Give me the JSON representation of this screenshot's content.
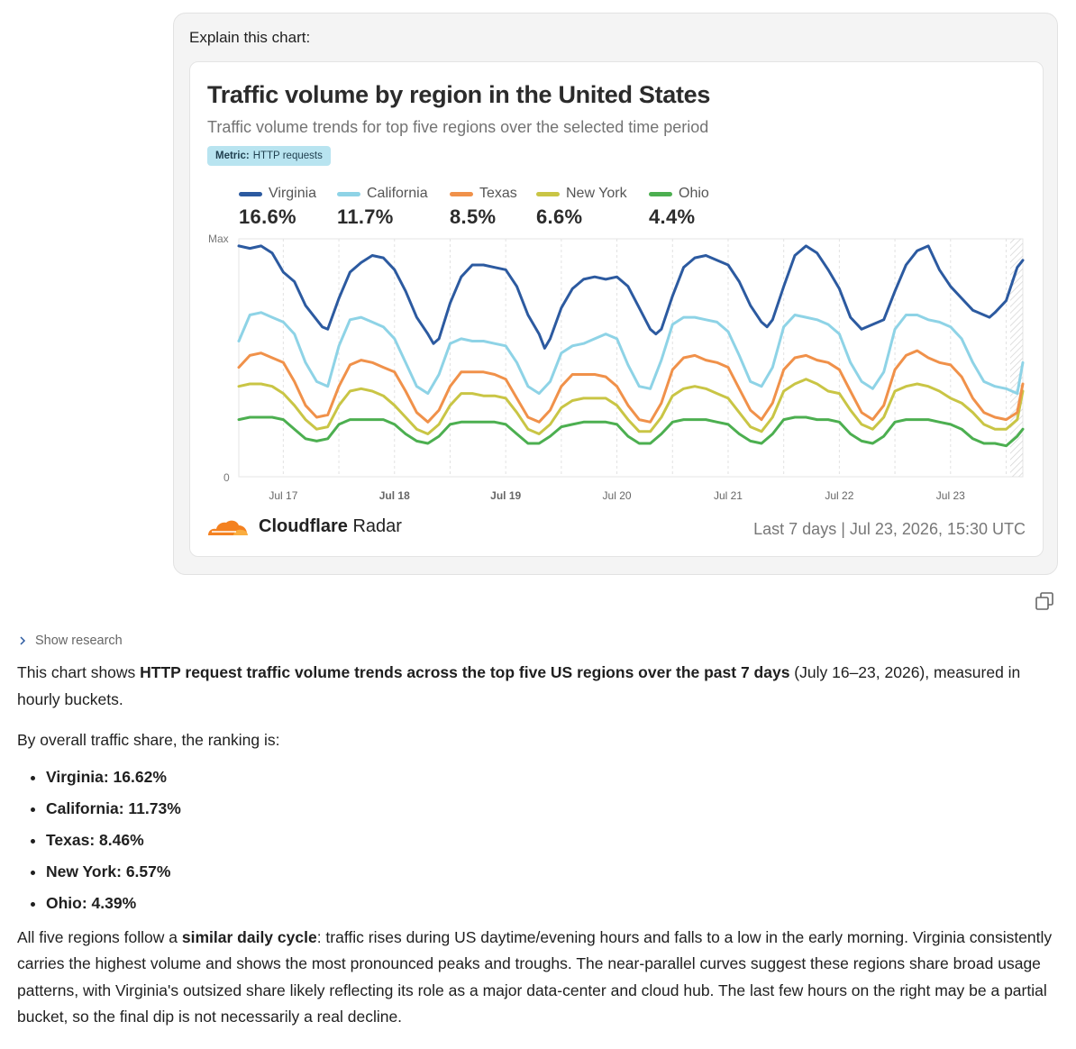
{
  "prompt": "Explain this chart:",
  "card": {
    "title": "Traffic volume by region in the United States",
    "subtitle": "Traffic volume trends for top five regions over the selected time period",
    "metric_label": "Metric:",
    "metric_value": "HTTP requests",
    "brand_bold": "Cloudflare",
    "brand_regular": "Radar",
    "footer": "Last 7 days  |  Jul 23, 2026, 15:30 UTC"
  },
  "legend": [
    {
      "name": "Virginia",
      "value": "16.6%",
      "color": "#2c5aa0"
    },
    {
      "name": "California",
      "value": "11.7%",
      "color": "#8ed3e6"
    },
    {
      "name": "Texas",
      "value": "8.5%",
      "color": "#f0914a"
    },
    {
      "name": "New York",
      "value": "6.6%",
      "color": "#c9c545"
    },
    {
      "name": "Ohio",
      "value": "4.4%",
      "color": "#4caf50"
    }
  ],
  "chart_data": {
    "type": "line",
    "title": "Traffic volume by region in the United States",
    "ylabel_top": "Max",
    "ylabel_bottom": "0",
    "x_ticks": [
      "Jul 17",
      "Jul 18",
      "Jul 19",
      "Jul 20",
      "Jul 21",
      "Jul 22",
      "Jul 23"
    ],
    "x_bold_ticks": [
      "Jul 18",
      "Jul 19"
    ],
    "x_range_days": [
      16.6,
      23.65
    ],
    "y_unit": "fraction of max",
    "series": [
      {
        "name": "Virginia",
        "color": "#2c5aa0",
        "x": [
          16.6,
          16.7,
          16.8,
          16.9,
          17.0,
          17.1,
          17.2,
          17.3,
          17.35,
          17.4,
          17.5,
          17.6,
          17.7,
          17.8,
          17.9,
          18.0,
          18.1,
          18.2,
          18.3,
          18.35,
          18.4,
          18.5,
          18.6,
          18.7,
          18.8,
          18.9,
          19.0,
          19.1,
          19.2,
          19.3,
          19.35,
          19.4,
          19.5,
          19.6,
          19.7,
          19.8,
          19.9,
          20.0,
          20.1,
          20.2,
          20.3,
          20.35,
          20.4,
          20.5,
          20.6,
          20.7,
          20.8,
          20.9,
          21.0,
          21.1,
          21.2,
          21.3,
          21.35,
          21.4,
          21.5,
          21.6,
          21.7,
          21.8,
          21.9,
          22.0,
          22.1,
          22.2,
          22.3,
          22.35,
          22.4,
          22.5,
          22.6,
          22.7,
          22.8,
          22.9,
          23.0,
          23.1,
          23.2,
          23.3,
          23.35,
          23.4,
          23.5,
          23.6,
          23.65
        ],
        "y": [
          0.97,
          0.96,
          0.97,
          0.94,
          0.86,
          0.82,
          0.72,
          0.66,
          0.63,
          0.62,
          0.75,
          0.86,
          0.9,
          0.93,
          0.92,
          0.87,
          0.78,
          0.67,
          0.6,
          0.56,
          0.58,
          0.73,
          0.84,
          0.89,
          0.89,
          0.88,
          0.87,
          0.8,
          0.68,
          0.6,
          0.54,
          0.58,
          0.71,
          0.79,
          0.83,
          0.84,
          0.83,
          0.84,
          0.8,
          0.71,
          0.62,
          0.6,
          0.62,
          0.76,
          0.88,
          0.92,
          0.93,
          0.91,
          0.89,
          0.82,
          0.72,
          0.65,
          0.63,
          0.66,
          0.8,
          0.93,
          0.97,
          0.94,
          0.87,
          0.79,
          0.67,
          0.62,
          0.64,
          0.65,
          0.66,
          0.78,
          0.89,
          0.95,
          0.97,
          0.87,
          0.8,
          0.75,
          0.7,
          0.68,
          0.67,
          0.69,
          0.74,
          0.88,
          0.91
        ]
      },
      {
        "name": "California",
        "color": "#8ed3e6",
        "x": [
          16.6,
          16.7,
          16.8,
          16.9,
          17.0,
          17.1,
          17.2,
          17.3,
          17.4,
          17.5,
          17.6,
          17.7,
          17.8,
          17.9,
          18.0,
          18.1,
          18.2,
          18.3,
          18.4,
          18.5,
          18.6,
          18.7,
          18.8,
          18.9,
          19.0,
          19.1,
          19.2,
          19.3,
          19.4,
          19.5,
          19.6,
          19.7,
          19.8,
          19.9,
          20.0,
          20.1,
          20.2,
          20.3,
          20.4,
          20.5,
          20.6,
          20.7,
          20.8,
          20.9,
          21.0,
          21.1,
          21.2,
          21.3,
          21.4,
          21.5,
          21.6,
          21.7,
          21.8,
          21.9,
          22.0,
          22.1,
          22.2,
          22.3,
          22.4,
          22.5,
          22.6,
          22.7,
          22.8,
          22.9,
          23.0,
          23.1,
          23.2,
          23.3,
          23.4,
          23.5,
          23.6,
          23.65
        ],
        "y": [
          0.57,
          0.68,
          0.69,
          0.67,
          0.65,
          0.6,
          0.48,
          0.4,
          0.38,
          0.55,
          0.66,
          0.67,
          0.65,
          0.63,
          0.58,
          0.48,
          0.38,
          0.35,
          0.43,
          0.56,
          0.58,
          0.57,
          0.57,
          0.56,
          0.55,
          0.48,
          0.38,
          0.35,
          0.4,
          0.52,
          0.55,
          0.56,
          0.58,
          0.6,
          0.58,
          0.47,
          0.38,
          0.37,
          0.49,
          0.64,
          0.67,
          0.67,
          0.66,
          0.65,
          0.61,
          0.51,
          0.4,
          0.38,
          0.46,
          0.63,
          0.68,
          0.67,
          0.66,
          0.64,
          0.6,
          0.48,
          0.4,
          0.37,
          0.44,
          0.62,
          0.68,
          0.68,
          0.66,
          0.65,
          0.63,
          0.58,
          0.48,
          0.4,
          0.38,
          0.37,
          0.35,
          0.48
        ]
      },
      {
        "name": "Texas",
        "color": "#f0914a",
        "x": [
          16.6,
          16.7,
          16.8,
          16.9,
          17.0,
          17.1,
          17.2,
          17.3,
          17.4,
          17.5,
          17.6,
          17.7,
          17.8,
          17.9,
          18.0,
          18.1,
          18.2,
          18.3,
          18.4,
          18.5,
          18.6,
          18.7,
          18.8,
          18.9,
          19.0,
          19.1,
          19.2,
          19.3,
          19.4,
          19.5,
          19.6,
          19.7,
          19.8,
          19.9,
          20.0,
          20.1,
          20.2,
          20.3,
          20.4,
          20.5,
          20.6,
          20.7,
          20.8,
          20.9,
          21.0,
          21.1,
          21.2,
          21.3,
          21.4,
          21.5,
          21.6,
          21.7,
          21.8,
          21.9,
          22.0,
          22.1,
          22.2,
          22.3,
          22.4,
          22.5,
          22.6,
          22.7,
          22.8,
          22.9,
          23.0,
          23.1,
          23.2,
          23.3,
          23.4,
          23.5,
          23.6,
          23.65
        ],
        "y": [
          0.46,
          0.51,
          0.52,
          0.5,
          0.48,
          0.4,
          0.3,
          0.25,
          0.26,
          0.38,
          0.47,
          0.49,
          0.48,
          0.46,
          0.44,
          0.36,
          0.27,
          0.23,
          0.28,
          0.38,
          0.44,
          0.44,
          0.44,
          0.43,
          0.41,
          0.33,
          0.25,
          0.23,
          0.28,
          0.38,
          0.43,
          0.43,
          0.43,
          0.42,
          0.38,
          0.3,
          0.24,
          0.23,
          0.31,
          0.45,
          0.5,
          0.51,
          0.49,
          0.48,
          0.46,
          0.37,
          0.28,
          0.24,
          0.31,
          0.45,
          0.5,
          0.51,
          0.49,
          0.48,
          0.45,
          0.36,
          0.27,
          0.24,
          0.3,
          0.45,
          0.51,
          0.53,
          0.5,
          0.48,
          0.47,
          0.42,
          0.33,
          0.27,
          0.25,
          0.24,
          0.27,
          0.39
        ]
      },
      {
        "name": "New York",
        "color": "#c9c545",
        "x": [
          16.6,
          16.7,
          16.8,
          16.9,
          17.0,
          17.1,
          17.2,
          17.3,
          17.4,
          17.5,
          17.6,
          17.7,
          17.8,
          17.9,
          18.0,
          18.1,
          18.2,
          18.3,
          18.4,
          18.5,
          18.6,
          18.7,
          18.8,
          18.9,
          19.0,
          19.1,
          19.2,
          19.3,
          19.4,
          19.5,
          19.6,
          19.7,
          19.8,
          19.9,
          20.0,
          20.1,
          20.2,
          20.3,
          20.4,
          20.5,
          20.6,
          20.7,
          20.8,
          20.9,
          21.0,
          21.1,
          21.2,
          21.3,
          21.4,
          21.5,
          21.6,
          21.7,
          21.8,
          21.9,
          22.0,
          22.1,
          22.2,
          22.3,
          22.4,
          22.5,
          22.6,
          22.7,
          22.8,
          22.9,
          23.0,
          23.1,
          23.2,
          23.3,
          23.4,
          23.5,
          23.6,
          23.65
        ],
        "y": [
          0.38,
          0.39,
          0.39,
          0.38,
          0.35,
          0.3,
          0.24,
          0.2,
          0.21,
          0.3,
          0.36,
          0.37,
          0.36,
          0.34,
          0.3,
          0.25,
          0.2,
          0.18,
          0.22,
          0.3,
          0.35,
          0.35,
          0.34,
          0.34,
          0.33,
          0.27,
          0.2,
          0.18,
          0.22,
          0.29,
          0.32,
          0.33,
          0.33,
          0.33,
          0.3,
          0.24,
          0.19,
          0.19,
          0.25,
          0.34,
          0.37,
          0.38,
          0.37,
          0.35,
          0.33,
          0.27,
          0.21,
          0.19,
          0.25,
          0.36,
          0.39,
          0.41,
          0.39,
          0.36,
          0.35,
          0.28,
          0.22,
          0.2,
          0.25,
          0.36,
          0.38,
          0.39,
          0.38,
          0.36,
          0.33,
          0.31,
          0.27,
          0.22,
          0.2,
          0.2,
          0.24,
          0.36
        ]
      },
      {
        "name": "Ohio",
        "color": "#4caf50",
        "x": [
          16.6,
          16.7,
          16.8,
          16.9,
          17.0,
          17.1,
          17.2,
          17.3,
          17.4,
          17.5,
          17.6,
          17.7,
          17.8,
          17.9,
          18.0,
          18.1,
          18.2,
          18.3,
          18.4,
          18.5,
          18.6,
          18.7,
          18.8,
          18.9,
          19.0,
          19.1,
          19.2,
          19.3,
          19.4,
          19.5,
          19.6,
          19.7,
          19.8,
          19.9,
          20.0,
          20.1,
          20.2,
          20.3,
          20.4,
          20.5,
          20.6,
          20.7,
          20.8,
          20.9,
          21.0,
          21.1,
          21.2,
          21.3,
          21.4,
          21.5,
          21.6,
          21.7,
          21.8,
          21.9,
          22.0,
          22.1,
          22.2,
          22.3,
          22.4,
          22.5,
          22.6,
          22.7,
          22.8,
          22.9,
          23.0,
          23.1,
          23.2,
          23.3,
          23.4,
          23.5,
          23.6,
          23.65
        ],
        "y": [
          0.24,
          0.25,
          0.25,
          0.25,
          0.24,
          0.2,
          0.16,
          0.15,
          0.16,
          0.22,
          0.24,
          0.24,
          0.24,
          0.24,
          0.22,
          0.18,
          0.15,
          0.14,
          0.17,
          0.22,
          0.23,
          0.23,
          0.23,
          0.23,
          0.22,
          0.18,
          0.14,
          0.14,
          0.17,
          0.21,
          0.22,
          0.23,
          0.23,
          0.23,
          0.22,
          0.17,
          0.14,
          0.14,
          0.18,
          0.23,
          0.24,
          0.24,
          0.24,
          0.23,
          0.22,
          0.18,
          0.15,
          0.14,
          0.18,
          0.24,
          0.25,
          0.25,
          0.24,
          0.24,
          0.23,
          0.18,
          0.15,
          0.14,
          0.17,
          0.23,
          0.24,
          0.24,
          0.24,
          0.23,
          0.22,
          0.2,
          0.16,
          0.14,
          0.14,
          0.13,
          0.17,
          0.2
        ]
      }
    ]
  },
  "research_label": "Show research",
  "answer": {
    "p1_pre": "This chart shows ",
    "p1_bold": "HTTP request traffic volume trends across the top five US regions over the past 7 days",
    "p1_post": " (July 16–23, 2026), measured in hourly buckets.",
    "p2": "By overall traffic share, the ranking is:",
    "ranking": [
      "Virginia: 16.62%",
      "California: 11.73%",
      "Texas: 8.46%",
      "New York: 6.57%",
      "Ohio: 4.39%"
    ],
    "p3_pre": "All five regions follow a ",
    "p3_bold": "similar daily cycle",
    "p3_post": ": traffic rises during US daytime/evening hours and falls to a low in the early morning. Virginia consistently carries the highest volume and shows the most pronounced peaks and troughs. The near-parallel curves suggest these regions share broad usage patterns, with Virginia's outsized share likely reflecting its role as a major data-center and cloud hub. The last few hours on the right may be a partial bucket, so the final dip is not necessarily a real decline."
  }
}
